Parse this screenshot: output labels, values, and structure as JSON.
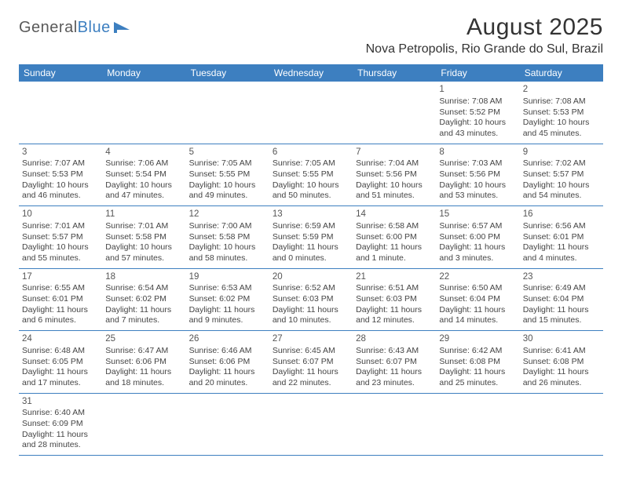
{
  "logo": {
    "text1": "General",
    "text2": "Blue"
  },
  "title": "August 2025",
  "location": "Nova Petropolis, Rio Grande do Sul, Brazil",
  "colors": {
    "header_bg": "#3d7fc0",
    "header_text": "#ffffff",
    "divider": "#3d7fc0",
    "row_divider": "#cccccc",
    "body_text": "#444444",
    "logo_gray": "#5a5a5a",
    "logo_blue": "#3d7fc0"
  },
  "day_headers": [
    "Sunday",
    "Monday",
    "Tuesday",
    "Wednesday",
    "Thursday",
    "Friday",
    "Saturday"
  ],
  "weeks": [
    [
      null,
      null,
      null,
      null,
      null,
      {
        "n": "1",
        "sr": "7:08 AM",
        "ss": "5:52 PM",
        "dl": "10 hours and 43 minutes."
      },
      {
        "n": "2",
        "sr": "7:08 AM",
        "ss": "5:53 PM",
        "dl": "10 hours and 45 minutes."
      }
    ],
    [
      {
        "n": "3",
        "sr": "7:07 AM",
        "ss": "5:53 PM",
        "dl": "10 hours and 46 minutes."
      },
      {
        "n": "4",
        "sr": "7:06 AM",
        "ss": "5:54 PM",
        "dl": "10 hours and 47 minutes."
      },
      {
        "n": "5",
        "sr": "7:05 AM",
        "ss": "5:55 PM",
        "dl": "10 hours and 49 minutes."
      },
      {
        "n": "6",
        "sr": "7:05 AM",
        "ss": "5:55 PM",
        "dl": "10 hours and 50 minutes."
      },
      {
        "n": "7",
        "sr": "7:04 AM",
        "ss": "5:56 PM",
        "dl": "10 hours and 51 minutes."
      },
      {
        "n": "8",
        "sr": "7:03 AM",
        "ss": "5:56 PM",
        "dl": "10 hours and 53 minutes."
      },
      {
        "n": "9",
        "sr": "7:02 AM",
        "ss": "5:57 PM",
        "dl": "10 hours and 54 minutes."
      }
    ],
    [
      {
        "n": "10",
        "sr": "7:01 AM",
        "ss": "5:57 PM",
        "dl": "10 hours and 55 minutes."
      },
      {
        "n": "11",
        "sr": "7:01 AM",
        "ss": "5:58 PM",
        "dl": "10 hours and 57 minutes."
      },
      {
        "n": "12",
        "sr": "7:00 AM",
        "ss": "5:58 PM",
        "dl": "10 hours and 58 minutes."
      },
      {
        "n": "13",
        "sr": "6:59 AM",
        "ss": "5:59 PM",
        "dl": "11 hours and 0 minutes."
      },
      {
        "n": "14",
        "sr": "6:58 AM",
        "ss": "6:00 PM",
        "dl": "11 hours and 1 minute."
      },
      {
        "n": "15",
        "sr": "6:57 AM",
        "ss": "6:00 PM",
        "dl": "11 hours and 3 minutes."
      },
      {
        "n": "16",
        "sr": "6:56 AM",
        "ss": "6:01 PM",
        "dl": "11 hours and 4 minutes."
      }
    ],
    [
      {
        "n": "17",
        "sr": "6:55 AM",
        "ss": "6:01 PM",
        "dl": "11 hours and 6 minutes."
      },
      {
        "n": "18",
        "sr": "6:54 AM",
        "ss": "6:02 PM",
        "dl": "11 hours and 7 minutes."
      },
      {
        "n": "19",
        "sr": "6:53 AM",
        "ss": "6:02 PM",
        "dl": "11 hours and 9 minutes."
      },
      {
        "n": "20",
        "sr": "6:52 AM",
        "ss": "6:03 PM",
        "dl": "11 hours and 10 minutes."
      },
      {
        "n": "21",
        "sr": "6:51 AM",
        "ss": "6:03 PM",
        "dl": "11 hours and 12 minutes."
      },
      {
        "n": "22",
        "sr": "6:50 AM",
        "ss": "6:04 PM",
        "dl": "11 hours and 14 minutes."
      },
      {
        "n": "23",
        "sr": "6:49 AM",
        "ss": "6:04 PM",
        "dl": "11 hours and 15 minutes."
      }
    ],
    [
      {
        "n": "24",
        "sr": "6:48 AM",
        "ss": "6:05 PM",
        "dl": "11 hours and 17 minutes."
      },
      {
        "n": "25",
        "sr": "6:47 AM",
        "ss": "6:06 PM",
        "dl": "11 hours and 18 minutes."
      },
      {
        "n": "26",
        "sr": "6:46 AM",
        "ss": "6:06 PM",
        "dl": "11 hours and 20 minutes."
      },
      {
        "n": "27",
        "sr": "6:45 AM",
        "ss": "6:07 PM",
        "dl": "11 hours and 22 minutes."
      },
      {
        "n": "28",
        "sr": "6:43 AM",
        "ss": "6:07 PM",
        "dl": "11 hours and 23 minutes."
      },
      {
        "n": "29",
        "sr": "6:42 AM",
        "ss": "6:08 PM",
        "dl": "11 hours and 25 minutes."
      },
      {
        "n": "30",
        "sr": "6:41 AM",
        "ss": "6:08 PM",
        "dl": "11 hours and 26 minutes."
      }
    ],
    [
      {
        "n": "31",
        "sr": "6:40 AM",
        "ss": "6:09 PM",
        "dl": "11 hours and 28 minutes."
      },
      null,
      null,
      null,
      null,
      null,
      null
    ]
  ],
  "labels": {
    "sunrise": "Sunrise:",
    "sunset": "Sunset:",
    "daylight": "Daylight:"
  }
}
